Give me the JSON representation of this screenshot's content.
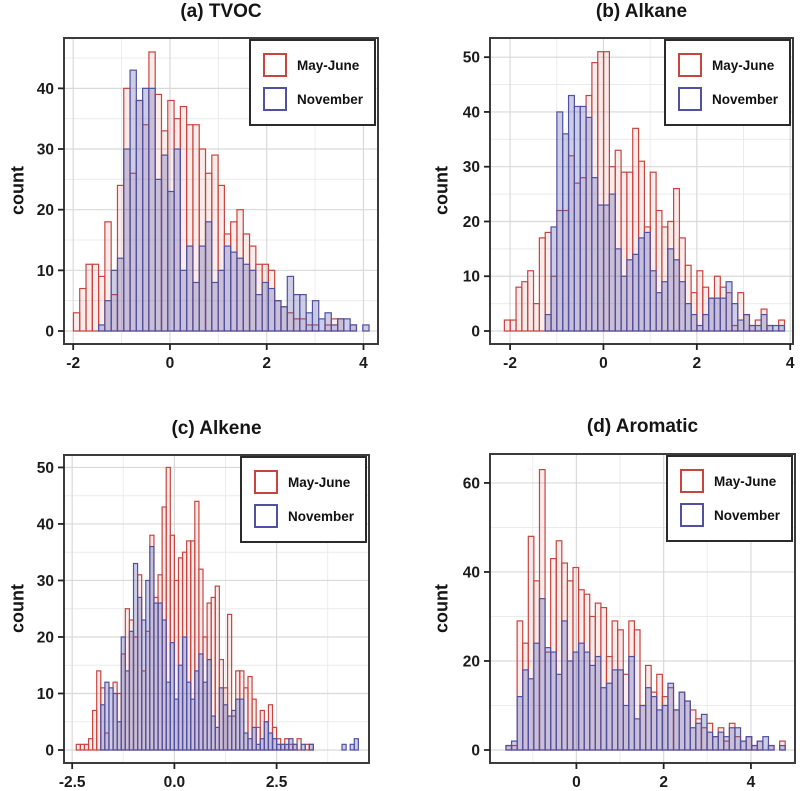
{
  "figure": {
    "legend": {
      "items": [
        {
          "label": "May-June",
          "color": "#c8443f",
          "fill": "rgba(200,68,63,0.10)"
        },
        {
          "label": "November",
          "color": "#5051a2",
          "fill": "rgba(88,89,170,0.30)"
        }
      ]
    }
  },
  "chart_data": [
    {
      "id": "a",
      "type": "bar",
      "subtype": "overlaid-histogram",
      "title": "(a) TVOC",
      "ylabel": "count",
      "xlim": [
        -2.19,
        4.3
      ],
      "ylim": [
        0,
        48.3
      ],
      "x_ticks": [
        -2,
        0,
        2,
        4
      ],
      "x_tick_labels": [
        "-2",
        "0",
        "2",
        "4"
      ],
      "x_minor": [
        -1,
        1,
        3
      ],
      "y_ticks": [
        0,
        10,
        20,
        30,
        40
      ],
      "y_tick_labels": [
        "0",
        "10",
        "20",
        "30",
        "40"
      ],
      "y_minor": [
        5,
        15,
        25,
        35,
        45
      ],
      "bin_start": -1.93,
      "bin_width": 0.13,
      "series": [
        {
          "name": "May-June",
          "values": [
            3,
            7,
            11,
            11,
            9,
            18,
            6,
            24,
            40,
            26,
            38,
            34,
            46,
            39,
            33,
            38,
            35,
            37,
            34,
            34,
            30,
            26,
            29,
            24,
            16,
            18,
            20,
            16,
            14,
            11,
            11,
            10,
            5,
            4,
            3,
            2,
            2,
            1,
            1,
            0,
            1,
            2,
            2,
            0,
            1,
            0,
            0
          ]
        },
        {
          "name": "November",
          "values": [
            0,
            0,
            0,
            0,
            1,
            5,
            10,
            12,
            30,
            43,
            38,
            40,
            40,
            25,
            29,
            23,
            30,
            10,
            14,
            8,
            14,
            18,
            8,
            10,
            14,
            13,
            12,
            11,
            10,
            6,
            8,
            7,
            5,
            4,
            9,
            6,
            6,
            3,
            5,
            2,
            3,
            1,
            2,
            2,
            1,
            0,
            1
          ]
        }
      ]
    },
    {
      "id": "b",
      "type": "bar",
      "subtype": "overlaid-histogram",
      "title": "(b) Alkane",
      "ylabel": "count",
      "xlim": [
        -2.43,
        4.06
      ],
      "ylim": [
        0,
        53.5
      ],
      "x_ticks": [
        -2,
        0,
        2,
        4
      ],
      "x_tick_labels": [
        "-2",
        "0",
        "2",
        "4"
      ],
      "x_minor": [
        -1,
        1,
        3
      ],
      "y_ticks": [
        0,
        10,
        20,
        30,
        40,
        50
      ],
      "y_tick_labels": [
        "0",
        "10",
        "20",
        "30",
        "40",
        "50"
      ],
      "y_minor": [
        5,
        15,
        25,
        35,
        45
      ],
      "bin_start": -2.06,
      "bin_width": 0.125,
      "series": [
        {
          "name": "May-June",
          "values": [
            2,
            2,
            8,
            9,
            11,
            5,
            17,
            18,
            10,
            22,
            22,
            32,
            27,
            28,
            43,
            49,
            51,
            51,
            30,
            33,
            29,
            29,
            37,
            31,
            19,
            29,
            22,
            19,
            20,
            26,
            17,
            12,
            7,
            11,
            8,
            6,
            10,
            8,
            7,
            1,
            7,
            3,
            1,
            2,
            4,
            1,
            0,
            2
          ]
        },
        {
          "name": "November",
          "values": [
            0,
            0,
            0,
            0,
            0,
            0,
            0,
            3,
            19,
            40,
            36,
            43,
            41,
            41,
            39,
            28,
            23,
            23,
            25,
            15,
            10,
            13,
            14,
            17,
            18,
            11,
            7,
            9,
            15,
            13,
            9,
            5,
            3,
            1,
            3,
            6,
            6,
            6,
            9,
            5,
            2,
            3,
            1,
            1,
            3,
            1,
            1,
            1
          ]
        }
      ]
    },
    {
      "id": "c",
      "type": "bar",
      "subtype": "overlaid-histogram",
      "title": "(c) Alkene",
      "ylabel": "count",
      "xlim": [
        -2.7,
        4.76
      ],
      "ylim": [
        0,
        52.2
      ],
      "x_ticks": [
        -2.5,
        0,
        2.5
      ],
      "x_tick_labels": [
        "-2.5",
        "0.0",
        "2.5"
      ],
      "x_minor": [
        -1.25,
        1.25,
        3.75
      ],
      "y_ticks": [
        0,
        10,
        20,
        30,
        40,
        50
      ],
      "y_tick_labels": [
        "0",
        "10",
        "20",
        "30",
        "40",
        "50"
      ],
      "y_minor": [
        5,
        15,
        25,
        35,
        45
      ],
      "bin_start": -2.35,
      "bin_width": 0.1,
      "series": [
        {
          "name": "May-June",
          "values": [
            1,
            1,
            1,
            2,
            7,
            14,
            11,
            3,
            0,
            12,
            10,
            17,
            25,
            23,
            20,
            31,
            14,
            21,
            38,
            27,
            31,
            43,
            50,
            38,
            30,
            34,
            35,
            37,
            37,
            44,
            32,
            20,
            26,
            27,
            29,
            16,
            11,
            24,
            6,
            14,
            14,
            11,
            13,
            9,
            4,
            7,
            5,
            8,
            4,
            2,
            1,
            2,
            1,
            1,
            2,
            0,
            1,
            1,
            0,
            0,
            0,
            0,
            0,
            0,
            0,
            0,
            0,
            0,
            0
          ]
        },
        {
          "name": "November",
          "values": [
            0,
            0,
            0,
            0,
            0,
            0,
            8,
            12,
            11,
            10,
            5,
            20,
            14,
            21,
            33,
            27,
            23,
            30,
            36,
            26,
            26,
            23,
            12,
            19,
            9,
            15,
            20,
            12,
            9,
            14,
            17,
            12,
            16,
            6,
            4,
            11,
            8,
            6,
            7,
            9,
            9,
            3,
            2,
            4,
            1,
            2,
            5,
            3,
            2,
            1,
            1,
            1,
            2,
            1,
            0,
            1,
            0,
            1,
            0,
            0,
            0,
            0,
            0,
            0,
            0,
            1,
            0,
            1,
            2
          ]
        }
      ]
    },
    {
      "id": "d",
      "type": "bar",
      "subtype": "overlaid-histogram",
      "title": "(d) Aromatic",
      "ylabel": "count",
      "xlim": [
        -1.98,
        5.01
      ],
      "ylim": [
        0,
        66.5
      ],
      "x_ticks": [
        0,
        2,
        4
      ],
      "x_tick_labels": [
        "0",
        "2",
        "4"
      ],
      "x_minor": [
        -1,
        1,
        3
      ],
      "y_ticks": [
        0,
        20,
        40,
        60
      ],
      "y_tick_labels": [
        "0",
        "20",
        "40",
        "60"
      ],
      "y_minor": [
        10,
        30,
        50
      ],
      "bin_start": -1.55,
      "bin_width": 0.128,
      "series": [
        {
          "name": "May-June",
          "values": [
            1,
            1,
            29,
            24,
            48,
            38,
            63,
            22,
            43,
            47,
            42,
            38,
            41,
            36,
            35,
            30,
            33,
            32,
            21,
            29,
            27,
            17,
            29,
            27,
            10,
            19,
            13,
            17,
            12,
            14,
            9,
            13,
            11,
            9,
            7,
            5,
            6,
            3,
            5,
            2,
            6,
            3,
            2,
            3,
            1,
            2,
            0,
            1,
            0,
            2
          ]
        },
        {
          "name": "November",
          "values": [
            1,
            2,
            12,
            18,
            16,
            24,
            34,
            23,
            22,
            17,
            29,
            20,
            22,
            24,
            22,
            19,
            21,
            14,
            15,
            18,
            18,
            10,
            21,
            7,
            10,
            14,
            12,
            9,
            10,
            15,
            9,
            13,
            11,
            5,
            6,
            8,
            4,
            3,
            4,
            3,
            5,
            5,
            2,
            3,
            1,
            2,
            3,
            1,
            0,
            1
          ]
        }
      ]
    }
  ]
}
